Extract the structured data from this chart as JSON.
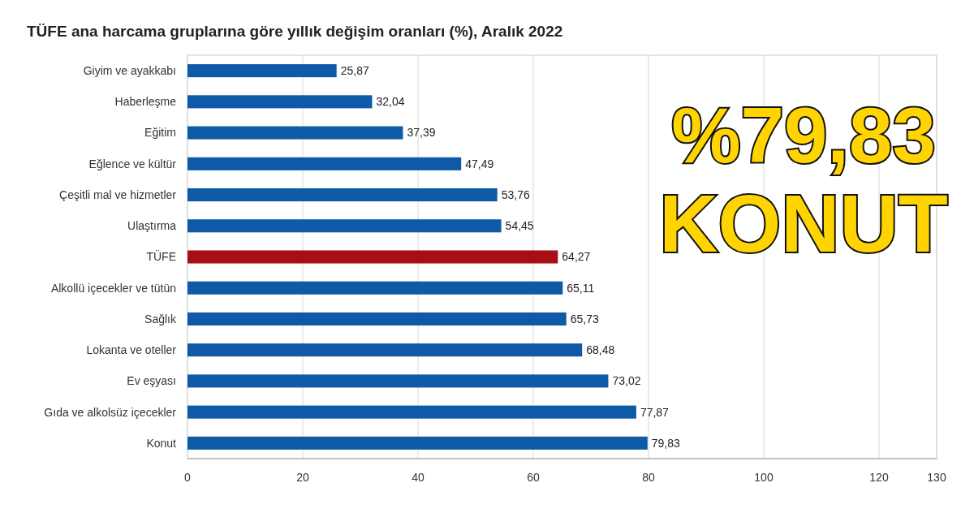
{
  "chart_data": {
    "type": "bar",
    "orientation": "horizontal",
    "title": "TÜFE ana harcama gruplarına göre yıllık değişim oranları (%), Aralık 2022",
    "categories": [
      "Giyim ve ayakkabı",
      "Haberleşme",
      "Eğitim",
      "Eğlence ve kültür",
      "Çeşitli mal ve hizmetler",
      "Ulaştırma",
      "TÜFE",
      "Alkollü içecekler ve tütün",
      "Sağlık",
      "Lokanta ve oteller",
      "Ev eşyası",
      "Gıda ve alkolsüz içecekler",
      "Konut"
    ],
    "values": [
      25.87,
      32.04,
      37.39,
      47.49,
      53.76,
      54.45,
      64.27,
      65.11,
      65.73,
      68.48,
      73.02,
      77.87,
      79.83
    ],
    "value_labels": [
      "25,87",
      "32,04",
      "37,39",
      "47,49",
      "53,76",
      "54,45",
      "64,27",
      "65,11",
      "65,73",
      "68,48",
      "73,02",
      "77,87",
      "79,83"
    ],
    "colors": [
      "#0e5aa7",
      "#0e5aa7",
      "#0e5aa7",
      "#0e5aa7",
      "#0e5aa7",
      "#0e5aa7",
      "#a50f15",
      "#0e5aa7",
      "#0e5aa7",
      "#0e5aa7",
      "#0e5aa7",
      "#0e5aa7",
      "#0e5aa7"
    ],
    "xlim": [
      0,
      130
    ],
    "xticks": [
      0,
      20,
      40,
      60,
      80,
      100,
      120,
      130
    ],
    "grid": "x",
    "annotations": [
      "%79,83",
      "KONUT"
    ]
  }
}
